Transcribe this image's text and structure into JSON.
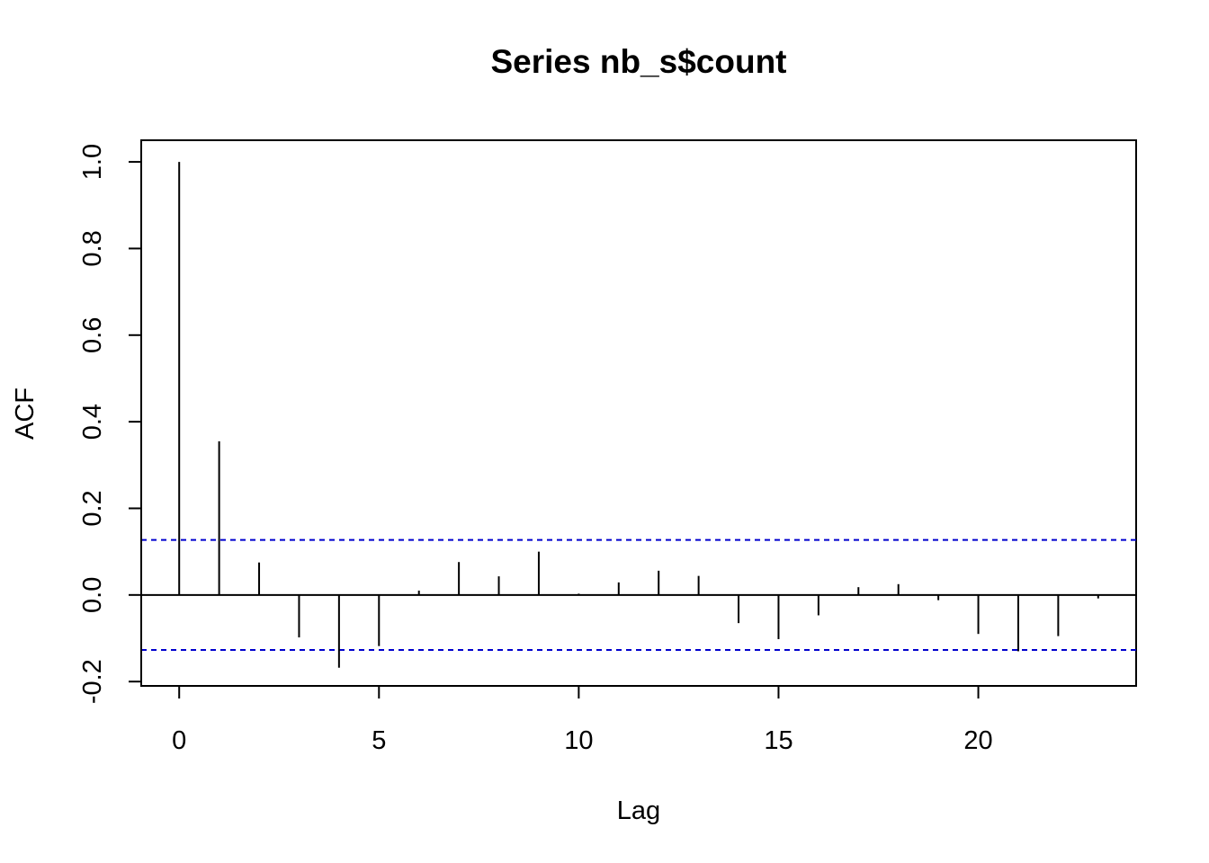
{
  "chart_data": {
    "type": "bar",
    "subtype": "acf-spikes",
    "title": "Series  nb_s$count",
    "xlabel": "Lag",
    "ylabel": "ACF",
    "xlim": [
      -0.95,
      23.95
    ],
    "ylim": [
      -0.21,
      1.05
    ],
    "x_ticks": [
      0,
      5,
      10,
      15,
      20
    ],
    "x_tick_labels": [
      "0",
      "5",
      "10",
      "15",
      "20"
    ],
    "y_ticks": [
      -0.2,
      0.0,
      0.2,
      0.4,
      0.6,
      0.8,
      1.0
    ],
    "y_tick_labels": [
      "-0.2",
      "0.0",
      "0.2",
      "0.4",
      "0.6",
      "0.8",
      "1.0"
    ],
    "grid": false,
    "lags": [
      0,
      1,
      2,
      3,
      4,
      5,
      6,
      7,
      8,
      9,
      10,
      11,
      12,
      13,
      14,
      15,
      16,
      17,
      18,
      19,
      20,
      21,
      22,
      23
    ],
    "values": [
      1.0,
      0.355,
      0.075,
      -0.098,
      -0.168,
      -0.118,
      0.01,
      0.076,
      0.043,
      0.1,
      0.003,
      0.029,
      0.056,
      0.044,
      -0.065,
      -0.102,
      -0.047,
      0.018,
      0.025,
      -0.012,
      -0.09,
      -0.13,
      -0.095,
      -0.008
    ],
    "zero_line": 0,
    "confidence_bounds": [
      0.127,
      -0.127
    ],
    "spike_color": "#000000",
    "confidence_color": "#0000CD"
  }
}
